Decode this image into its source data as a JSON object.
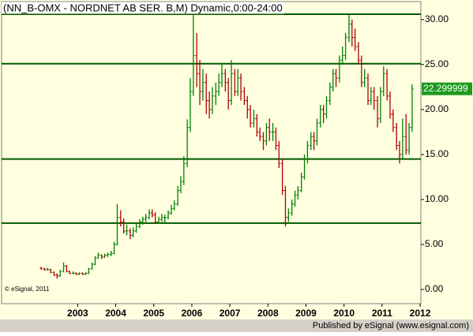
{
  "chart_data": {
    "type": "ohlc",
    "title": "(NN_B-OMX - NORDNET AB SER. B,M) Dynamic,0:00-24:00",
    "copyright": "© eSignal, 2011",
    "x": [
      2002.04,
      2002.13,
      2002.21,
      2002.29,
      2002.38,
      2002.46,
      2002.54,
      2002.63,
      2002.71,
      2002.79,
      2002.88,
      2002.96,
      2003.04,
      2003.13,
      2003.21,
      2003.29,
      2003.38,
      2003.46,
      2003.54,
      2003.63,
      2003.71,
      2003.79,
      2003.88,
      2003.96,
      2004.04,
      2004.13,
      2004.21,
      2004.29,
      2004.38,
      2004.46,
      2004.54,
      2004.63,
      2004.71,
      2004.79,
      2004.88,
      2004.96,
      2005.04,
      2005.13,
      2005.21,
      2005.29,
      2005.38,
      2005.46,
      2005.54,
      2005.63,
      2005.71,
      2005.79,
      2005.88,
      2005.96,
      2006.04,
      2006.13,
      2006.21,
      2006.29,
      2006.38,
      2006.46,
      2006.54,
      2006.63,
      2006.71,
      2006.79,
      2006.88,
      2006.96,
      2007.04,
      2007.13,
      2007.21,
      2007.29,
      2007.38,
      2007.46,
      2007.54,
      2007.63,
      2007.71,
      2007.79,
      2007.88,
      2007.96,
      2008.04,
      2008.13,
      2008.21,
      2008.29,
      2008.38,
      2008.46,
      2008.54,
      2008.63,
      2008.71,
      2008.79,
      2008.88,
      2008.96,
      2009.04,
      2009.13,
      2009.21,
      2009.29,
      2009.38,
      2009.46,
      2009.54,
      2009.63,
      2009.71,
      2009.79,
      2009.88,
      2009.96,
      2010.04,
      2010.13,
      2010.21,
      2010.29,
      2010.38,
      2010.46,
      2010.54,
      2010.63,
      2010.71,
      2010.79,
      2010.88,
      2010.96,
      2011.04,
      2011.13,
      2011.21,
      2011.29,
      2011.38,
      2011.46,
      2011.54,
      2011.63,
      2011.71,
      2011.79
    ],
    "open": [
      2.4,
      2.3,
      2.2,
      2.2,
      1.9,
      1.6,
      1.5,
      2.0,
      2.6,
      2.0,
      1.8,
      1.8,
      1.7,
      1.8,
      1.7,
      1.8,
      2.3,
      2.8,
      3.5,
      3.8,
      3.6,
      3.8,
      3.9,
      4.0,
      5.0,
      8.0,
      7.5,
      6.5,
      6.5,
      6.0,
      6.5,
      7.0,
      7.5,
      7.8,
      8.0,
      8.5,
      8.3,
      7.5,
      7.8,
      8.0,
      8.0,
      8.5,
      9.0,
      9.5,
      11.0,
      12.0,
      14.0,
      18.0,
      22.0,
      26.0,
      24.0,
      22.0,
      23.0,
      21.0,
      20.0,
      21.5,
      22.0,
      23.0,
      24.0,
      23.0,
      21.0,
      24.0,
      22.0,
      23.5,
      22.0,
      21.0,
      20.0,
      18.5,
      19.0,
      17.5,
      17.0,
      16.5,
      18.0,
      17.5,
      17.5,
      16.0,
      14.0,
      11.0,
      8.0,
      8.5,
      9.5,
      10.5,
      11.0,
      12.5,
      14.5,
      16.0,
      17.0,
      16.5,
      18.5,
      20.0,
      19.5,
      21.0,
      22.5,
      24.0,
      23.5,
      25.5,
      26.0,
      28.0,
      29.5,
      28.0,
      27.0,
      25.5,
      23.0,
      23.5,
      21.0,
      22.0,
      21.0,
      19.0,
      22.0,
      24.0,
      21.5,
      19.5,
      18.0,
      16.0,
      15.0,
      17.0,
      15.5,
      18.0
    ],
    "high": [
      2.5,
      2.4,
      2.4,
      2.3,
      2.0,
      1.8,
      2.2,
      3.0,
      2.7,
      2.1,
      2.0,
      1.9,
      1.9,
      1.9,
      1.9,
      2.4,
      3.0,
      3.7,
      4.1,
      3.9,
      4.0,
      4.1,
      4.3,
      5.3,
      9.5,
      8.8,
      7.9,
      7.2,
      6.8,
      6.9,
      7.3,
      7.8,
      8.1,
      8.4,
      8.9,
      8.9,
      8.6,
      8.1,
      8.4,
      8.3,
      8.8,
      9.4,
      9.9,
      11.5,
      12.6,
      14.8,
      18.9,
      23.5,
      30.5,
      28.5,
      25.5,
      24.5,
      24.0,
      22.0,
      22.5,
      23.0,
      24.0,
      25.0,
      24.5,
      23.5,
      25.5,
      24.5,
      24.5,
      24.0,
      22.5,
      21.5,
      20.5,
      20.0,
      19.5,
      18.0,
      17.5,
      18.5,
      19.0,
      18.5,
      18.0,
      16.5,
      14.5,
      11.5,
      9.0,
      10.0,
      11.0,
      11.5,
      13.0,
      15.0,
      16.5,
      17.5,
      17.5,
      19.0,
      20.5,
      20.5,
      21.5,
      23.0,
      24.5,
      24.5,
      26.0,
      27.0,
      28.5,
      30.5,
      30.0,
      29.0,
      27.5,
      26.0,
      24.5,
      24.0,
      22.5,
      22.5,
      21.5,
      22.5,
      24.8,
      24.5,
      22.0,
      20.0,
      18.5,
      16.5,
      19.0,
      19.5,
      18.5,
      22.8
    ],
    "low": [
      2.2,
      2.1,
      2.1,
      1.8,
      1.5,
      1.2,
      1.4,
      1.9,
      1.9,
      1.7,
      1.7,
      1.6,
      1.6,
      1.6,
      1.6,
      1.7,
      2.2,
      2.7,
      3.4,
      3.4,
      3.5,
      3.6,
      3.7,
      3.9,
      4.9,
      7.0,
      6.2,
      6.0,
      5.6,
      5.8,
      6.3,
      6.8,
      7.2,
      7.5,
      7.8,
      8.0,
      7.3,
      7.3,
      7.5,
      7.4,
      7.8,
      8.3,
      8.8,
      9.3,
      10.7,
      11.6,
      13.6,
      17.5,
      21.5,
      22.5,
      20.5,
      21.0,
      19.5,
      19.0,
      19.5,
      20.5,
      21.5,
      22.5,
      22.0,
      20.0,
      20.5,
      21.5,
      21.5,
      21.0,
      20.5,
      19.0,
      18.0,
      18.0,
      17.0,
      16.5,
      15.5,
      16.0,
      16.5,
      16.5,
      15.5,
      13.5,
      10.5,
      7.0,
      7.5,
      8.2,
      9.2,
      10.0,
      10.8,
      12.2,
      14.0,
      15.5,
      15.5,
      16.0,
      18.0,
      18.5,
      19.0,
      20.5,
      22.0,
      22.5,
      23.0,
      25.0,
      25.5,
      27.5,
      27.0,
      26.5,
      25.0,
      22.5,
      22.5,
      20.5,
      20.5,
      20.0,
      18.0,
      18.5,
      21.5,
      21.0,
      19.0,
      17.5,
      15.5,
      14.0,
      14.5,
      15.0,
      15.0,
      17.5
    ],
    "close": [
      2.3,
      2.2,
      2.2,
      1.9,
      1.6,
      1.5,
      2.0,
      2.6,
      2.0,
      1.8,
      1.8,
      1.7,
      1.8,
      1.7,
      1.8,
      2.3,
      2.8,
      3.5,
      3.8,
      3.6,
      3.8,
      3.9,
      4.0,
      5.0,
      8.0,
      7.5,
      6.5,
      6.5,
      6.0,
      6.5,
      7.0,
      7.5,
      7.8,
      8.0,
      8.5,
      8.3,
      7.5,
      7.8,
      8.0,
      8.0,
      8.5,
      9.0,
      9.5,
      11.0,
      12.0,
      14.0,
      18.0,
      22.0,
      26.0,
      24.0,
      22.0,
      23.0,
      21.0,
      20.0,
      21.5,
      22.0,
      23.0,
      24.0,
      23.0,
      21.0,
      24.0,
      22.0,
      23.5,
      22.0,
      21.0,
      20.0,
      18.5,
      19.0,
      17.5,
      17.0,
      16.5,
      18.0,
      17.5,
      17.5,
      16.0,
      14.0,
      11.0,
      8.0,
      8.5,
      9.5,
      10.5,
      11.0,
      12.5,
      14.5,
      16.0,
      17.0,
      16.5,
      18.5,
      20.0,
      19.5,
      21.0,
      22.5,
      24.0,
      23.5,
      25.5,
      26.0,
      28.0,
      29.5,
      28.0,
      27.0,
      25.5,
      23.0,
      23.5,
      21.0,
      22.0,
      21.0,
      19.0,
      22.0,
      24.0,
      21.5,
      19.5,
      18.0,
      16.0,
      15.0,
      17.0,
      15.5,
      18.0,
      22.3
    ],
    "up_color": "#008000",
    "down_color": "#b00000",
    "xlim": [
      2001.0,
      2012.02
    ],
    "xticks": [
      2003,
      2004,
      2005,
      2006,
      2007,
      2008,
      2009,
      2010,
      2011,
      2012
    ],
    "ylim": [
      -1.58,
      32.0
    ],
    "yticks": [
      {
        "value": 0,
        "label": "0.00"
      },
      {
        "value": 5,
        "label": "5.00"
      },
      {
        "value": 10,
        "label": "10.00"
      },
      {
        "value": 15,
        "label": "15.00"
      },
      {
        "value": 20,
        "label": "20.00"
      },
      {
        "value": 25,
        "label": "25.00"
      },
      {
        "value": 30,
        "label": "30.00"
      }
    ],
    "reference_lines": {
      "values": [
        30.6,
        25.1,
        14.5,
        7.37
      ],
      "color": "#005a00"
    },
    "last_price": 22.299999,
    "last_price_color": "#1e9a1e"
  },
  "footer": "Published by eSignal (www.esignal.com)"
}
